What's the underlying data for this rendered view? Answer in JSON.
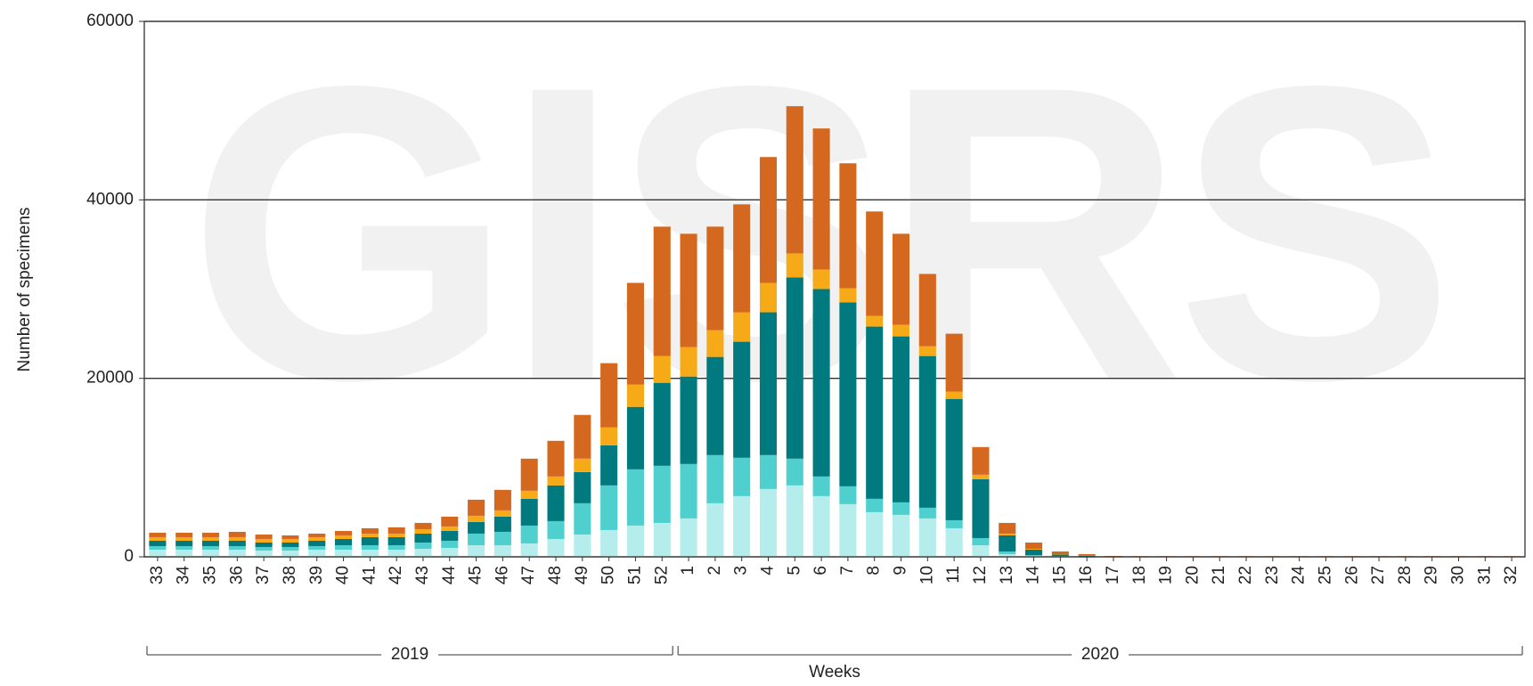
{
  "chart_data": {
    "type": "stacked_bar",
    "watermark": "GISRS",
    "y_label": "Number of specimens",
    "x_label": "Weeks",
    "x_groups": [
      "2019",
      "2020"
    ],
    "categories": [
      "33",
      "34",
      "35",
      "36",
      "37",
      "38",
      "39",
      "40",
      "41",
      "42",
      "43",
      "44",
      "45",
      "46",
      "47",
      "48",
      "49",
      "50",
      "51",
      "52",
      "1",
      "2",
      "3",
      "4",
      "5",
      "6",
      "7",
      "8",
      "9",
      "10",
      "11",
      "12",
      "13",
      "14",
      "15",
      "16",
      "17",
      "18",
      "19",
      "20",
      "21",
      "22",
      "23",
      "24",
      "25",
      "26",
      "27",
      "28",
      "29",
      "30",
      "31",
      "32"
    ],
    "series": [
      {
        "color": "#b5ecec",
        "values": [
          800,
          800,
          800,
          800,
          700,
          700,
          800,
          800,
          800,
          800,
          900,
          1000,
          1300,
          1300,
          1500,
          2000,
          2500,
          3000,
          3500,
          3800,
          4300,
          6000,
          6800,
          7600,
          8000,
          6800,
          5900,
          5000,
          4700,
          4300,
          3200,
          1300,
          300,
          100,
          50,
          20,
          10,
          10,
          10,
          10,
          10,
          10,
          10,
          10,
          10,
          10,
          10,
          10,
          10,
          10,
          10,
          10
        ]
      },
      {
        "color": "#4fd0cf",
        "values": [
          400,
          400,
          400,
          400,
          400,
          400,
          400,
          500,
          500,
          500,
          700,
          800,
          1300,
          1500,
          2000,
          2000,
          3500,
          5000,
          6300,
          6400,
          6100,
          5400,
          4300,
          3800,
          3000,
          2200,
          2000,
          1500,
          1400,
          1200,
          900,
          800,
          300,
          100,
          50,
          20,
          10,
          10,
          10,
          10,
          10,
          10,
          10,
          10,
          10,
          10,
          10,
          10,
          10,
          10,
          10,
          10
        ]
      },
      {
        "color": "#007a7e",
        "values": [
          600,
          600,
          600,
          600,
          500,
          500,
          600,
          700,
          900,
          900,
          1000,
          1100,
          1300,
          1700,
          3000,
          4000,
          3500,
          4500,
          7000,
          9300,
          9800,
          11000,
          13000,
          16000,
          20300,
          21000,
          20600,
          19300,
          18600,
          17000,
          13600,
          6600,
          1800,
          600,
          150,
          60,
          20,
          10,
          10,
          10,
          10,
          10,
          10,
          10,
          10,
          10,
          10,
          10,
          10,
          10,
          10,
          10
        ]
      },
      {
        "color": "#f7aa17",
        "values": [
          400,
          400,
          400,
          400,
          400,
          400,
          400,
          400,
          400,
          400,
          500,
          500,
          700,
          700,
          900,
          1000,
          1500,
          2000,
          2500,
          3000,
          3300,
          3000,
          3300,
          3300,
          2700,
          2200,
          1600,
          1200,
          1300,
          1100,
          800,
          500,
          200,
          100,
          50,
          20,
          10,
          10,
          10,
          10,
          10,
          10,
          10,
          10,
          10,
          10,
          10,
          10,
          10,
          10,
          10,
          10
        ]
      },
      {
        "color": "#d4681f",
        "values": [
          500,
          500,
          500,
          600,
          500,
          400,
          400,
          500,
          600,
          700,
          700,
          1100,
          1800,
          2300,
          3600,
          4000,
          4900,
          7200,
          11400,
          14500,
          12700,
          11600,
          12100,
          14100,
          16500,
          15800,
          14000,
          11700,
          10200,
          8100,
          6500,
          3100,
          1200,
          700,
          300,
          180,
          50,
          30,
          30,
          30,
          30,
          30,
          30,
          30,
          30,
          30,
          30,
          30,
          30,
          30,
          30,
          30
        ]
      }
    ],
    "ylim": [
      0,
      60000
    ],
    "yticks": [
      0,
      20000,
      40000,
      60000
    ],
    "grid": true
  }
}
